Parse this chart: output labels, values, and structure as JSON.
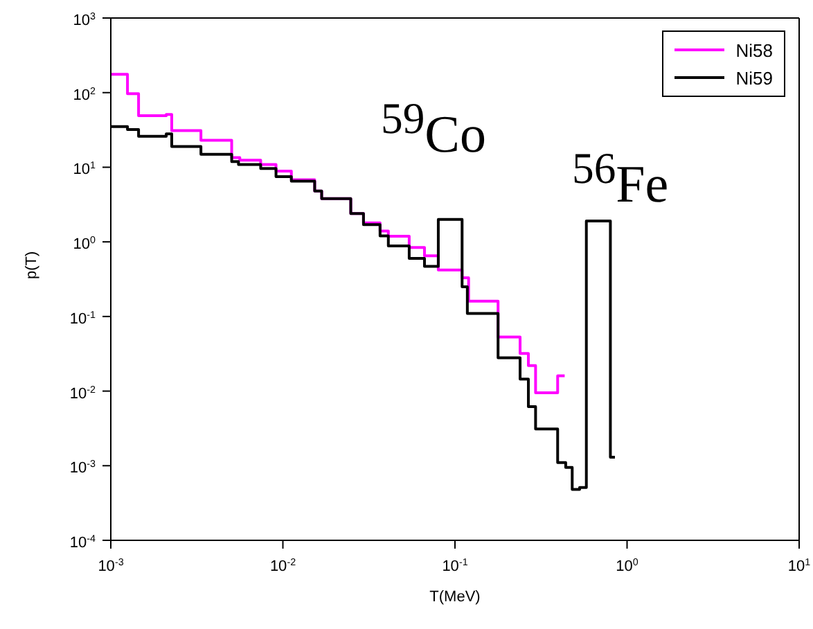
{
  "chart_data": {
    "type": "step",
    "xlabel": "T(MeV)",
    "ylabel": "p(T)",
    "log": "xy",
    "legend": "top right",
    "xlim": [
      0.001,
      10
    ],
    "xticks": [
      {
        "value": 0.001,
        "label": "10$^{-3}$"
      },
      {
        "value": 0.01,
        "label": "10$^{-2}$"
      },
      {
        "value": 0.1,
        "label": "10$^{-1}$"
      },
      {
        "value": 1,
        "label": "10$^{0}$"
      },
      {
        "value": 10,
        "label": "10$^{1}$"
      }
    ],
    "ylim": [
      0.0001,
      1000
    ],
    "yticks": [
      {
        "value": 0.0001,
        "label": "10$^{-4}$"
      },
      {
        "value": 0.001,
        "label": "10$^{-3}$"
      },
      {
        "value": 0.01,
        "label": "10$^{-2}$"
      },
      {
        "value": 0.1,
        "label": "10$^{-1}$"
      },
      {
        "value": 1,
        "label": "10$^{0}$"
      },
      {
        "value": 10,
        "label": "10$^{1}$"
      },
      {
        "value": 100,
        "label": "10$^{2}$"
      },
      {
        "value": 1000,
        "label": "10$^{3}$"
      }
    ],
    "annotations": [
      "$^{59}$Co",
      "$^{56}$Fe"
    ],
    "series": [
      {
        "name": "Ni58",
        "color": "#ff00ff",
        "x": [
          0.001,
          0.00125,
          0.00145,
          0.0021,
          0.00226,
          0.00334,
          0.00504,
          0.00562,
          0.00743,
          0.00912,
          0.0112,
          0.0153,
          0.0168,
          0.0248,
          0.0294,
          0.0367,
          0.041,
          0.0542,
          0.0665,
          0.08,
          0.11,
          0.12,
          0.178,
          0.239,
          0.267,
          0.294,
          0.395,
          0.434
        ],
        "values": [
          176,
          97,
          49,
          51,
          31,
          23,
          13.5,
          12.4,
          10.9,
          8.9,
          6.8,
          4.8,
          3.8,
          2.4,
          1.8,
          1.4,
          1.19,
          0.84,
          0.65,
          0.42,
          0.33,
          0.16,
          0.053,
          0.032,
          0.022,
          0.0095,
          0.016,
          0.016
        ]
      },
      {
        "name": "Ni59",
        "color": "#000000",
        "x": [
          0.001,
          0.00125,
          0.00145,
          0.0021,
          0.00226,
          0.00334,
          0.00504,
          0.00552,
          0.00743,
          0.00912,
          0.0112,
          0.0153,
          0.0168,
          0.0248,
          0.0294,
          0.0367,
          0.041,
          0.0542,
          0.0665,
          0.08,
          0.11,
          0.118,
          0.178,
          0.239,
          0.267,
          0.294,
          0.395,
          0.44,
          0.48,
          0.53,
          0.58,
          0.8,
          0.85
        ],
        "values": [
          35,
          32,
          26,
          28,
          19,
          14.9,
          11.9,
          10.9,
          9.6,
          7.5,
          6.5,
          4.8,
          3.8,
          2.4,
          1.7,
          1.2,
          0.88,
          0.6,
          0.47,
          2.0,
          0.25,
          0.11,
          0.028,
          0.0145,
          0.0062,
          0.0031,
          0.0011,
          0.00095,
          0.00048,
          0.00051,
          1.9,
          0.0013,
          0.0013
        ]
      }
    ]
  }
}
